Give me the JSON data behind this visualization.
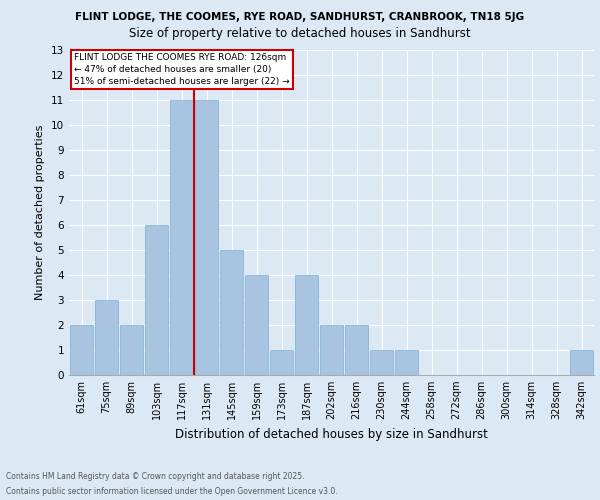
{
  "title1": "FLINT LODGE, THE COOMES, RYE ROAD, SANDHURST, CRANBROOK, TN18 5JG",
  "title2": "Size of property relative to detached houses in Sandhurst",
  "xlabel": "Distribution of detached houses by size in Sandhurst",
  "ylabel": "Number of detached properties",
  "categories": [
    "61sqm",
    "75sqm",
    "89sqm",
    "103sqm",
    "117sqm",
    "131sqm",
    "145sqm",
    "159sqm",
    "173sqm",
    "187sqm",
    "202sqm",
    "216sqm",
    "230sqm",
    "244sqm",
    "258sqm",
    "272sqm",
    "286sqm",
    "300sqm",
    "314sqm",
    "328sqm",
    "342sqm"
  ],
  "values": [
    2,
    3,
    2,
    6,
    11,
    11,
    5,
    4,
    1,
    4,
    2,
    2,
    1,
    1,
    0,
    0,
    0,
    0,
    0,
    0,
    1
  ],
  "bar_color": "#a8c4e0",
  "bar_edge_color": "#7aafd4",
  "ylim": [
    0,
    13
  ],
  "yticks": [
    0,
    1,
    2,
    3,
    4,
    5,
    6,
    7,
    8,
    9,
    10,
    11,
    12,
    13
  ],
  "annotation_title": "FLINT LODGE THE COOMES RYE ROAD: 126sqm",
  "annotation_line1": "← 47% of detached houses are smaller (20)",
  "annotation_line2": "51% of semi-detached houses are larger (22) →",
  "footer1": "Contains HM Land Registry data © Crown copyright and database right 2025.",
  "footer2": "Contains public sector information licensed under the Open Government Licence v3.0.",
  "bg_color": "#dce9f5",
  "plot_bg_color": "#dce9f5",
  "grid_color": "#ffffff",
  "annotation_box_edge": "#cc0000",
  "vline_color": "#cc0000",
  "title1_fontsize": 7.5,
  "title2_fontsize": 8.5,
  "xlabel_fontsize": 8.5,
  "ylabel_fontsize": 8.0,
  "tick_fontsize": 7.0,
  "annotation_fontsize": 6.5,
  "footer_fontsize": 5.5
}
